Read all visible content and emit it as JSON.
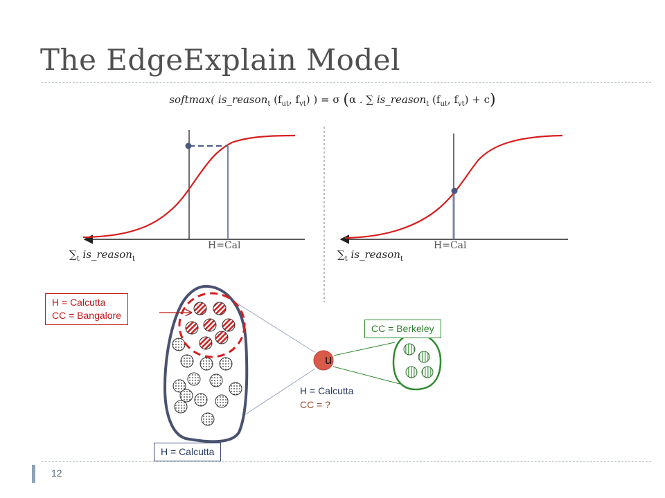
{
  "slide": {
    "title": "The EdgeExplain Model",
    "page_number": "12"
  },
  "formula": {
    "lhs_func": "softmax(",
    "lhs_term": " is_reason",
    "lhs_sub": "t",
    "lhs_args": " (f",
    "lhs_args_sub1": "ut",
    "lhs_args_mid": ", f",
    "lhs_args_sub2": "vt",
    "lhs_close": ") ) = σ ",
    "open_paren": "(",
    "rhs_alpha": "α . ∑ ",
    "rhs_term": "is_reason",
    "rhs_sub": "t",
    "rhs_args": " (f",
    "rhs_args_sub1": "ut",
    "rhs_args_mid": ", f",
    "rhs_args_sub2": "vt",
    "rhs_close": ") + c",
    "close_paren": ")"
  },
  "left_plot": {
    "axis_label_sigma": "∑",
    "axis_label_sub1": "t",
    "axis_label_term": " is_reason",
    "axis_label_sub2": "t",
    "marker_label": "H=Cal"
  },
  "right_plot": {
    "axis_label_sigma": "∑",
    "axis_label_sub1": "t",
    "axis_label_term": " is_reason",
    "axis_label_sub2": "t",
    "marker_label": "H=Cal"
  },
  "diagram": {
    "callout_red_line1": "H = Calcutta",
    "callout_red_line2": "CC = Bangalore",
    "callout_green": "CC = Berkeley",
    "callout_blue": "H = Calcutta",
    "user_node": "u",
    "user_h": "H = Calcutta",
    "user_cc": "CC = ?"
  },
  "colors": {
    "curve": "#d81e1e",
    "axis": "#2b2b2b",
    "cluster_border": "#4a5270",
    "red": "#c01818",
    "green": "#2e8b2e",
    "user_node_fill": "#d85a4a"
  }
}
